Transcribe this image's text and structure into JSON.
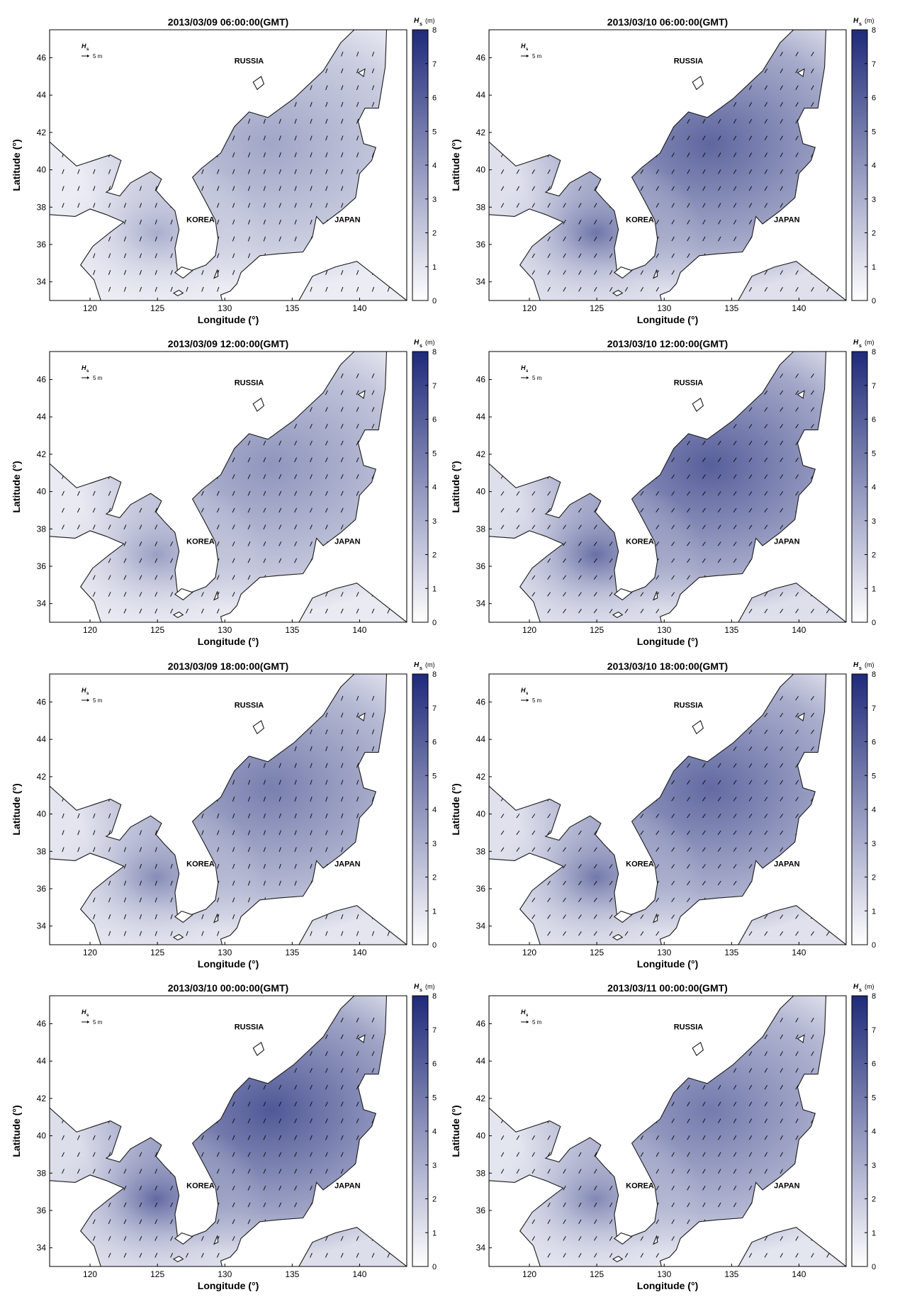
{
  "colorbar": {
    "title": "H",
    "title_sub": "s",
    "unit": "(m)",
    "ticks": [
      "0",
      "1",
      "2",
      "3",
      "4",
      "5",
      "6",
      "7",
      "8"
    ],
    "color_low": "#ffffff",
    "color_high": "#1f2a7a"
  },
  "axes": {
    "xlabel": "Longitude (°)",
    "ylabel": "Latitude (°)",
    "xticks": [
      "120",
      "125",
      "130",
      "135",
      "140"
    ],
    "yticks": [
      "34",
      "36",
      "38",
      "40",
      "42",
      "44",
      "46"
    ],
    "xlim": [
      117,
      143.5
    ],
    "ylim": [
      33,
      47.5
    ]
  },
  "scale_arrow": {
    "symbol": "H",
    "sub": "s",
    "value_label": "5 m"
  },
  "region_labels": {
    "russia": "RUSSIA",
    "korea": "KOREA",
    "japan": "JAPAN"
  },
  "panels": [
    {
      "title": "2013/03/09 06:00:00(GMT)",
      "intensity": 0.42,
      "dir": 200
    },
    {
      "title": "2013/03/10 06:00:00(GMT)",
      "intensity": 0.72,
      "dir": 210
    },
    {
      "title": "2013/03/09 12:00:00(GMT)",
      "intensity": 0.5,
      "dir": 205
    },
    {
      "title": "2013/03/10 12:00:00(GMT)",
      "intensity": 0.75,
      "dir": 215
    },
    {
      "title": "2013/03/09 18:00:00(GMT)",
      "intensity": 0.6,
      "dir": 200
    },
    {
      "title": "2013/03/10 18:00:00(GMT)",
      "intensity": 0.7,
      "dir": 215
    },
    {
      "title": "2013/03/10 00:00:00(GMT)",
      "intensity": 0.78,
      "dir": 205
    },
    {
      "title": "2013/03/11 00:00:00(GMT)",
      "intensity": 0.62,
      "dir": 210
    }
  ]
}
